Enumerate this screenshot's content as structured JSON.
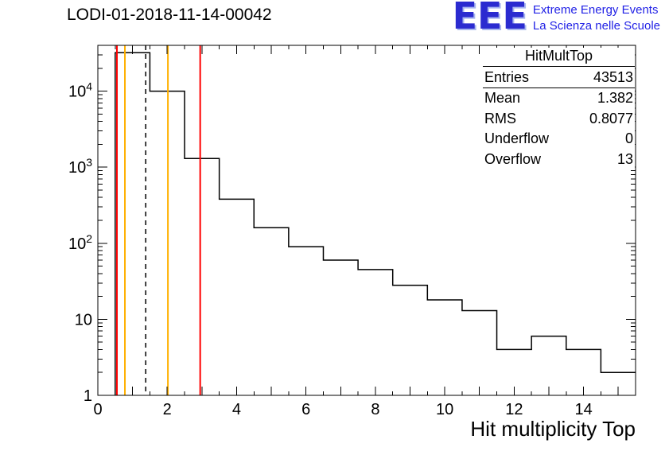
{
  "title": "LODI-01-2018-11-14-00042",
  "logo": {
    "text": "EEE",
    "tagline_line1": "Extreme Energy Events",
    "tagline_line2": "La Scienza nelle Scuole",
    "color": "#2b2bd0"
  },
  "stats": {
    "title": "HitMultTop",
    "rows": [
      {
        "label": "Entries",
        "value": "43513"
      },
      {
        "label": "Mean",
        "value": "1.382"
      },
      {
        "label": "RMS",
        "value": "0.8077"
      },
      {
        "label": "Underflow",
        "value": "0"
      },
      {
        "label": "Overflow",
        "value": "13"
      }
    ]
  },
  "chart_data": {
    "type": "bar",
    "subtype": "step-histogram",
    "title": "LODI-01-2018-11-14-00042",
    "xlabel": "Hit multiplicity Top",
    "ylabel": "",
    "xlim": [
      0,
      15.5
    ],
    "ylim": [
      1,
      40000
    ],
    "yscale": "log",
    "grid": false,
    "legend": "none",
    "x_major_tick_step": 2,
    "bin_edges": [
      0.5,
      1.5,
      2.5,
      3.5,
      4.5,
      5.5,
      6.5,
      7.5,
      8.5,
      9.5,
      10.5,
      11.5,
      12.5,
      13.5,
      14.5,
      15.5
    ],
    "counts": [
      32000,
      10000,
      1300,
      380,
      160,
      90,
      60,
      45,
      28,
      18,
      13,
      4,
      6,
      4,
      2
    ],
    "line_color": "#000000",
    "markers": [
      {
        "x": 0.55,
        "color": "#ff0000",
        "style": "solid"
      },
      {
        "x": 0.78,
        "color": "#ffb000",
        "style": "solid"
      },
      {
        "x": 1.38,
        "color": "#000000",
        "style": "dashed"
      },
      {
        "x": 2.02,
        "color": "#ffb000",
        "style": "solid"
      },
      {
        "x": 2.95,
        "color": "#ff0000",
        "style": "solid"
      }
    ]
  }
}
